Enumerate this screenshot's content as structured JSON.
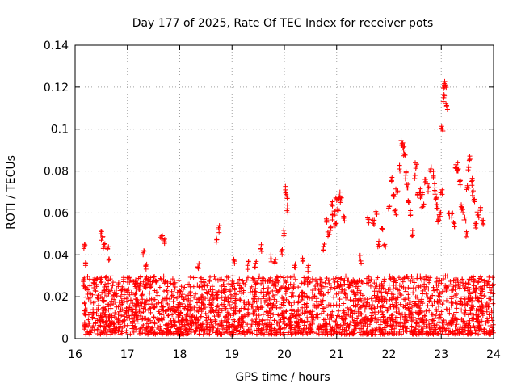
{
  "chart_data": {
    "type": "scatter",
    "title": "Day 177 of 2025, Rate Of TEC Index for receiver pots",
    "xlabel": "GPS time / hours",
    "ylabel": "ROTI / TECUs",
    "xlim": [
      16,
      24
    ],
    "ylim": [
      0,
      0.14
    ],
    "x_ticks": [
      16,
      17,
      18,
      19,
      20,
      21,
      22,
      23,
      24
    ],
    "y_ticks": [
      0,
      0.02,
      0.04,
      0.06,
      0.08,
      0.1,
      0.12,
      0.14
    ],
    "x_tick_labels": [
      "16",
      "17",
      "18",
      "19",
      "20",
      "21",
      "22",
      "23",
      "24"
    ],
    "y_tick_labels": [
      "0",
      "0.02",
      "0.04",
      "0.06",
      "0.08",
      "0.1",
      "0.12",
      "0.14"
    ],
    "grid": true,
    "marker": "+",
    "color": "#ff0000",
    "series": [
      {
        "name": "ROTI",
        "x": [
          16.18,
          16.2,
          16.5,
          16.52,
          16.55,
          16.62,
          16.65,
          17.3,
          17.35,
          17.65,
          17.7,
          18.35,
          18.7,
          18.75,
          19.05,
          19.3,
          19.45,
          19.55,
          19.75,
          19.82,
          19.95,
          20.0,
          20.02,
          20.05,
          20.06,
          20.2,
          20.35,
          20.45,
          20.75,
          20.8,
          20.85,
          20.88,
          20.9,
          20.92,
          20.95,
          20.98,
          21.0,
          21.02,
          21.05,
          21.08,
          21.15,
          21.45,
          21.6,
          21.7,
          21.75,
          21.8,
          21.88,
          21.92,
          22.0,
          22.05,
          22.1,
          22.12,
          22.15,
          22.2,
          22.25,
          22.28,
          22.3,
          22.32,
          22.35,
          22.38,
          22.4,
          22.45,
          22.5,
          22.52,
          22.55,
          22.6,
          22.62,
          22.65,
          22.7,
          22.75,
          22.8,
          22.85,
          22.88,
          22.9,
          22.92,
          22.95,
          22.98,
          23.0,
          23.02,
          23.05,
          23.06,
          23.08,
          23.1,
          23.15,
          23.2,
          23.25,
          23.28,
          23.3,
          23.32,
          23.35,
          23.38,
          23.4,
          23.45,
          23.48,
          23.5,
          23.52,
          23.55,
          23.58,
          23.6,
          23.62,
          23.65,
          23.7,
          23.75,
          23.8
        ],
        "y": [
          0.044,
          0.036,
          0.05,
          0.048,
          0.045,
          0.043,
          0.038,
          0.04,
          0.035,
          0.049,
          0.047,
          0.034,
          0.046,
          0.052,
          0.037,
          0.035,
          0.036,
          0.043,
          0.038,
          0.036,
          0.042,
          0.05,
          0.071,
          0.068,
          0.062,
          0.035,
          0.037,
          0.034,
          0.044,
          0.056,
          0.05,
          0.053,
          0.064,
          0.058,
          0.06,
          0.055,
          0.066,
          0.062,
          0.068,
          0.066,
          0.058,
          0.038,
          0.057,
          0.055,
          0.06,
          0.045,
          0.052,
          0.045,
          0.063,
          0.075,
          0.068,
          0.06,
          0.07,
          0.081,
          0.093,
          0.09,
          0.088,
          0.078,
          0.072,
          0.065,
          0.06,
          0.05,
          0.078,
          0.082,
          0.069,
          0.07,
          0.068,
          0.063,
          0.076,
          0.072,
          0.081,
          0.078,
          0.072,
          0.067,
          0.064,
          0.057,
          0.06,
          0.07,
          0.1,
          0.115,
          0.12,
          0.121,
          0.111,
          0.06,
          0.058,
          0.055,
          0.083,
          0.082,
          0.08,
          0.075,
          0.063,
          0.062,
          0.058,
          0.05,
          0.073,
          0.082,
          0.086,
          0.075,
          0.07,
          0.066,
          0.054,
          0.059,
          0.062,
          0.055
        ],
        "baseline": "dense cluster of points between 0.002 and 0.03 across the whole 16–24 h range"
      }
    ]
  }
}
